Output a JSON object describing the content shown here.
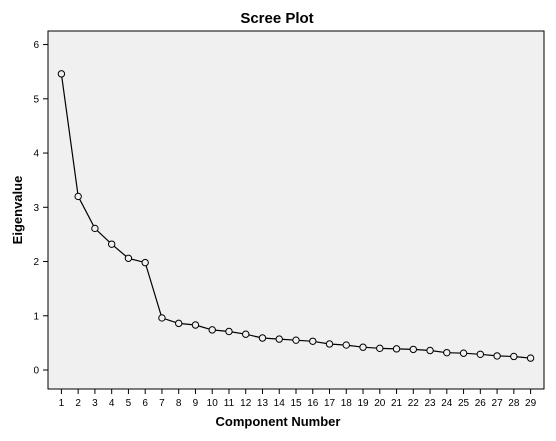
{
  "chart_data": {
    "type": "line",
    "title": "Scree Plot",
    "xlabel": "Component Number",
    "ylabel": "Eigenvalue",
    "x": [
      1,
      2,
      3,
      4,
      5,
      6,
      7,
      8,
      9,
      10,
      11,
      12,
      13,
      14,
      15,
      16,
      17,
      18,
      19,
      20,
      21,
      22,
      23,
      24,
      25,
      26,
      27,
      28,
      29
    ],
    "x_tick_labels": [
      "1",
      "2",
      "3",
      "4",
      "5",
      "6",
      "7",
      "8",
      "9",
      "10",
      "11",
      "12",
      "13",
      "14",
      "15",
      "16",
      "17",
      "18",
      "19",
      "20",
      "21",
      "22",
      "23",
      "24",
      "25",
      "26",
      "27",
      "28",
      "29"
    ],
    "series": [
      {
        "values": [
          5.46,
          3.2,
          2.61,
          2.32,
          2.06,
          1.98,
          0.96,
          0.86,
          0.83,
          0.74,
          0.71,
          0.66,
          0.59,
          0.57,
          0.55,
          0.53,
          0.48,
          0.46,
          0.42,
          0.4,
          0.39,
          0.38,
          0.36,
          0.32,
          0.31,
          0.29,
          0.26,
          0.25,
          0.22
        ],
        "marker": "open-circle",
        "color": "#000000"
      }
    ],
    "ylim": [
      -0.35,
      6.25
    ],
    "y_ticks": [
      0,
      1,
      2,
      3,
      4,
      5,
      6
    ],
    "y_tick_labels": [
      "0",
      "1",
      "2",
      "3",
      "4",
      "5",
      "6"
    ],
    "xlim": [
      0.2,
      29.8
    ],
    "grid": false,
    "plot_background": "#f0f0f0",
    "line_color": "#000000"
  }
}
